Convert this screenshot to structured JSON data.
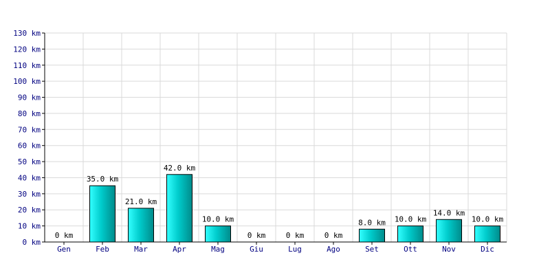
{
  "chart_data": {
    "type": "bar",
    "unit_suffix": " km",
    "categories": [
      "Gen",
      "Feb",
      "Mar",
      "Apr",
      "Mag",
      "Giu",
      "Lug",
      "Ago",
      "Set",
      "Ott",
      "Nov",
      "Dic"
    ],
    "values": [
      0,
      35,
      21,
      42,
      10,
      0,
      0,
      0,
      8,
      10,
      14,
      10
    ],
    "data_labels": [
      "0 km",
      "35.0 km",
      "21.0 km",
      "42.0 km",
      "10.0 km",
      "0 km",
      "0 km",
      "0 km",
      "8.0 km",
      "10.0 km",
      "14.0 km",
      "10.0 km"
    ],
    "y_ticks": [
      "0 km",
      "10 km",
      "20 km",
      "30 km",
      "40 km",
      "50 km",
      "60 km",
      "70 km",
      "80 km",
      "90 km",
      "100 km",
      "110 km",
      "120 km",
      "130 km"
    ],
    "ylim": [
      0,
      130
    ],
    "y_step": 10,
    "grid": true,
    "colors": {
      "bar_light": "#33ffff",
      "bar_mid": "#00cccc",
      "bar_dark": "#008b8b",
      "bar_edge": "#000000",
      "grid": "#d9d9d9",
      "axis": "#000000",
      "tick_text": "#000080"
    }
  }
}
